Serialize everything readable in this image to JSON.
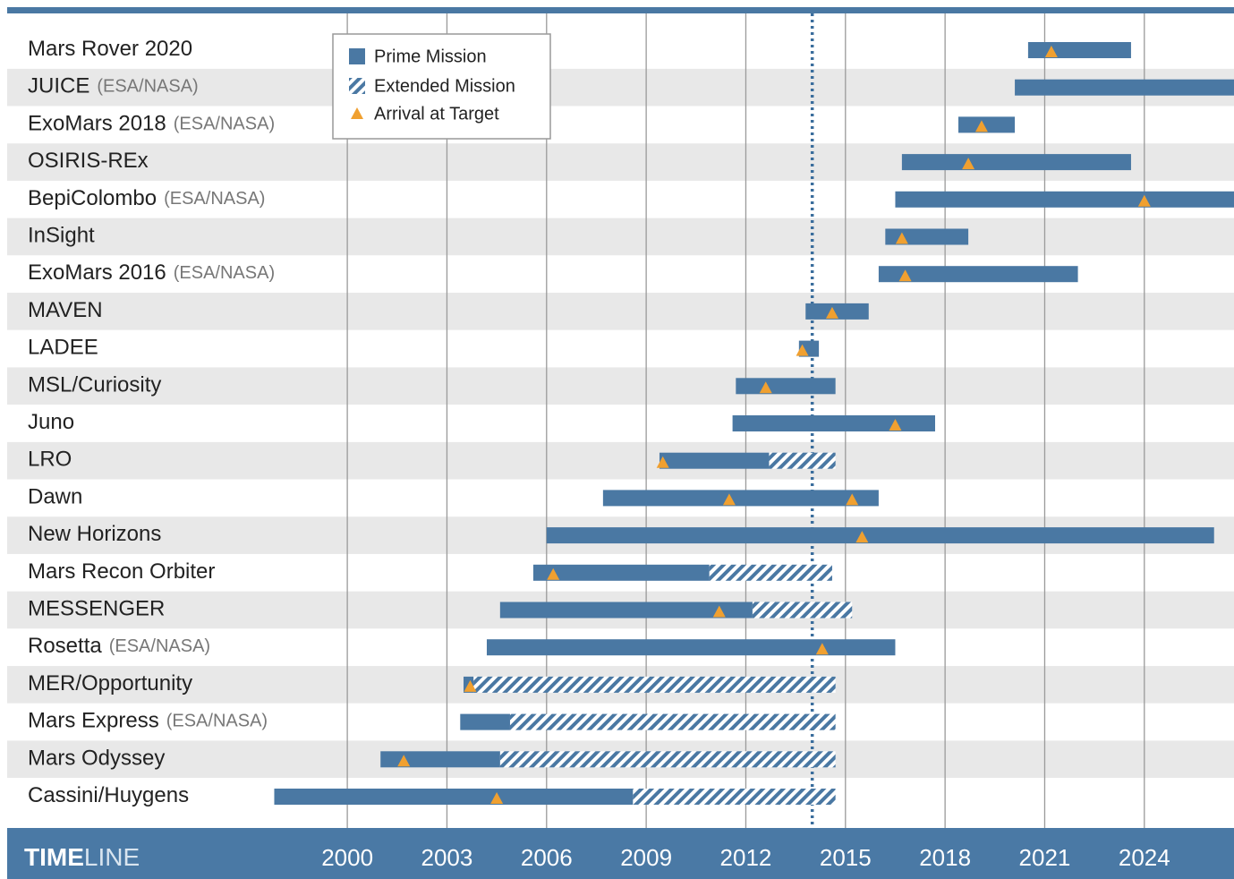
{
  "chart_data": {
    "type": "timeline",
    "title": {
      "strong": "TIME",
      "rest": "LINE"
    },
    "legend": {
      "prime": "Prime Mission",
      "extended": "Extended Mission",
      "arrival": "Arrival at Target"
    },
    "color": "#4a78a3",
    "arrival_color": "#f0a030",
    "xlim": [
      1990,
      2026.7
    ],
    "xticks": [
      2000,
      2003,
      2006,
      2009,
      2012,
      2015,
      2018,
      2021,
      2024
    ],
    "now": 2014.0,
    "missions": [
      {
        "name": "Mars Rover 2020",
        "prime": [
          2020.5,
          2023.6
        ],
        "arrivals": [
          2021.2
        ]
      },
      {
        "name": "JUICE",
        "agency": "(ESA/NASA)",
        "prime": [
          2020.1,
          2026.7
        ],
        "arrivals": []
      },
      {
        "name": "ExoMars 2018",
        "agency": "(ESA/NASA)",
        "prime": [
          2018.4,
          2020.1
        ],
        "arrivals": [
          2019.1
        ]
      },
      {
        "name": "OSIRIS-REx",
        "prime": [
          2016.7,
          2023.6
        ],
        "arrivals": [
          2018.7
        ]
      },
      {
        "name": "BepiColombo",
        "agency": "(ESA/NASA)",
        "prime": [
          2016.5,
          2026.7
        ],
        "arrivals": [
          2024.0
        ]
      },
      {
        "name": "InSight",
        "prime": [
          2016.2,
          2018.7
        ],
        "arrivals": [
          2016.7
        ]
      },
      {
        "name": "ExoMars 2016",
        "agency": "(ESA/NASA)",
        "prime": [
          2016.0,
          2022.0
        ],
        "arrivals": [
          2016.8
        ]
      },
      {
        "name": "MAVEN",
        "prime": [
          2013.8,
          2015.7
        ],
        "arrivals": [
          2014.6
        ]
      },
      {
        "name": "LADEE",
        "prime": [
          2013.6,
          2014.2
        ],
        "arrivals": [
          2013.7
        ]
      },
      {
        "name": "MSL/Curiosity",
        "prime": [
          2011.7,
          2014.7
        ],
        "arrivals": [
          2012.6
        ]
      },
      {
        "name": "Juno",
        "prime": [
          2011.6,
          2017.7
        ],
        "arrivals": [
          2016.5
        ]
      },
      {
        "name": "LRO",
        "prime": [
          2009.4,
          2012.7
        ],
        "extended": [
          2012.7,
          2014.7
        ],
        "arrivals": [
          2009.5
        ]
      },
      {
        "name": "Dawn",
        "prime": [
          2007.7,
          2016.0
        ],
        "arrivals": [
          2011.5,
          2015.2
        ]
      },
      {
        "name": "New Horizons",
        "prime": [
          2006.0,
          2026.1
        ],
        "arrivals": [
          2015.5
        ]
      },
      {
        "name": "Mars Recon Orbiter",
        "prime": [
          2005.6,
          2010.9
        ],
        "extended": [
          2010.9,
          2014.6
        ],
        "arrivals": [
          2006.2
        ]
      },
      {
        "name": "MESSENGER",
        "prime": [
          2004.6,
          2012.2
        ],
        "extended": [
          2012.2,
          2015.2
        ],
        "arrivals": [
          2011.2
        ]
      },
      {
        "name": "Rosetta",
        "agency": "(ESA/NASA)",
        "prime": [
          2004.2,
          2016.5
        ],
        "arrivals": [
          2014.3
        ]
      },
      {
        "name": "MER/Opportunity",
        "prime": [
          2003.5,
          2003.8
        ],
        "extended": [
          2003.8,
          2014.7
        ],
        "arrivals": [
          2003.7
        ]
      },
      {
        "name": "Mars Express",
        "agency": "(ESA/NASA)",
        "prime": [
          2003.4,
          2004.9
        ],
        "extended": [
          2004.9,
          2014.7
        ],
        "arrivals": []
      },
      {
        "name": "Mars Odyssey",
        "prime": [
          2001.0,
          2004.6
        ],
        "extended": [
          2004.6,
          2014.7
        ],
        "arrivals": [
          2001.7
        ]
      },
      {
        "name": "Cassini/Huygens",
        "prime": [
          1997.8,
          2008.6
        ],
        "extended": [
          2008.6,
          2014.7
        ],
        "arrivals": [
          2004.5
        ]
      }
    ]
  }
}
